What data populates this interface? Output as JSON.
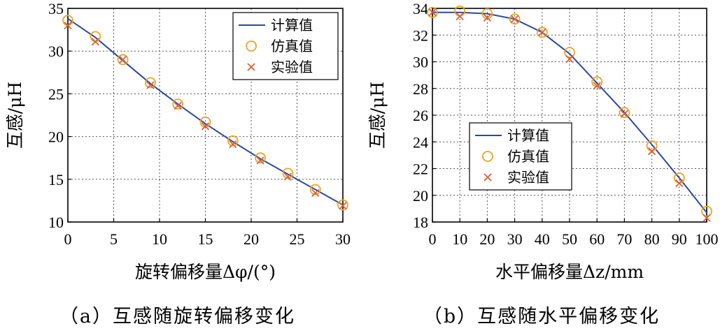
{
  "colors": {
    "line": "#2b4a9a",
    "circle": "#e8a528",
    "cross": "#d8603a",
    "grid": "#555555"
  },
  "chart_data": [
    {
      "type": "line",
      "xlabel": "旋转偏移量Δφ/(°)",
      "ylabel": "互感/μH",
      "caption": "（a）互感随旋转偏移变化",
      "xlim": [
        0,
        30
      ],
      "ylim": [
        10,
        35
      ],
      "xticks": [
        0,
        5,
        10,
        15,
        20,
        25,
        30
      ],
      "yticks": [
        10,
        15,
        20,
        25,
        30,
        35
      ],
      "grid": true,
      "legend_position": "top-right",
      "legend": [
        "计算值",
        "仿真值",
        "实验值"
      ],
      "series": [
        {
          "name": "计算值",
          "kind": "line",
          "x": [
            0,
            3,
            6,
            9,
            12,
            15,
            18,
            21,
            24,
            27,
            30
          ],
          "values": [
            33.8,
            31.6,
            28.9,
            26.2,
            23.8,
            21.5,
            19.4,
            17.4,
            15.6,
            13.8,
            12.0
          ]
        },
        {
          "name": "仿真值",
          "kind": "circle",
          "x": [
            0,
            3,
            6,
            9,
            12,
            15,
            18,
            21,
            24,
            27,
            30
          ],
          "values": [
            33.6,
            31.7,
            29.0,
            26.3,
            23.8,
            21.7,
            19.5,
            17.5,
            15.7,
            13.8,
            12.0
          ]
        },
        {
          "name": "实验值",
          "kind": "cross",
          "x": [
            0,
            3,
            6,
            9,
            12,
            15,
            18,
            21,
            24,
            27,
            30
          ],
          "values": [
            33.0,
            31.1,
            29.0,
            26.0,
            23.6,
            21.2,
            19.1,
            17.2,
            15.3,
            13.4,
            11.9
          ]
        }
      ]
    },
    {
      "type": "line",
      "xlabel": "水平偏移量Δz/mm",
      "ylabel": "互感/μH",
      "caption": "（b）互感随水平偏移变化",
      "xlim": [
        0,
        100
      ],
      "ylim": [
        18,
        34
      ],
      "xticks": [
        0,
        10,
        20,
        30,
        40,
        50,
        60,
        70,
        80,
        90,
        100
      ],
      "yticks": [
        18,
        20,
        22,
        24,
        26,
        28,
        30,
        32,
        34
      ],
      "grid": true,
      "legend_position": "center-left",
      "legend": [
        "计算值",
        "仿真值",
        "实验值"
      ],
      "series": [
        {
          "name": "计算值",
          "kind": "line",
          "x": [
            0,
            10,
            20,
            30,
            40,
            50,
            60,
            70,
            80,
            90,
            100
          ],
          "values": [
            33.7,
            33.7,
            33.6,
            33.2,
            32.2,
            30.6,
            28.4,
            26.2,
            23.8,
            21.3,
            18.7
          ]
        },
        {
          "name": "仿真值",
          "kind": "circle",
          "x": [
            0,
            10,
            20,
            30,
            40,
            50,
            60,
            70,
            80,
            90,
            100
          ],
          "values": [
            33.7,
            33.8,
            33.6,
            33.2,
            32.2,
            30.7,
            28.5,
            26.2,
            23.7,
            21.3,
            18.8
          ]
        },
        {
          "name": "实验值",
          "kind": "cross",
          "x": [
            0,
            10,
            20,
            30,
            40,
            50,
            60,
            70,
            80,
            90,
            100
          ],
          "values": [
            33.7,
            33.4,
            33.3,
            33.2,
            32.2,
            30.2,
            28.2,
            26.1,
            23.3,
            20.9,
            18.3
          ]
        }
      ]
    }
  ]
}
